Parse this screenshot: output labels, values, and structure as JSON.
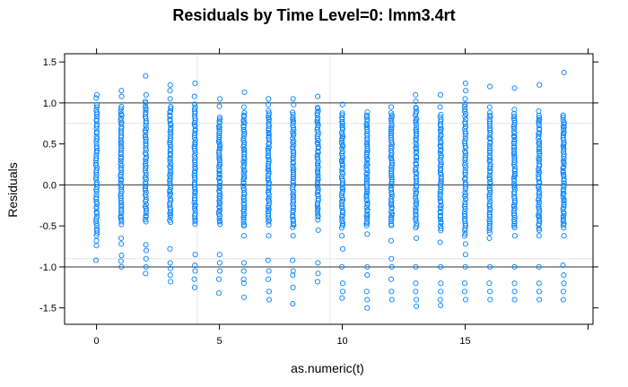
{
  "chart_data": {
    "type": "scatter",
    "title": "Residuals by Time Level=0: lmm3.4rt",
    "xlabel": "as.numeric(t)",
    "ylabel": "Residuals",
    "xlim": [
      -1.3,
      20.2
    ],
    "ylim": [
      -1.7,
      1.6
    ],
    "xticks": [
      "0",
      "5",
      "10",
      "15"
    ],
    "yticks": [
      "-1.5",
      "-1.0",
      "-0.5",
      "0.0",
      "0.5",
      "1.0",
      "1.5"
    ],
    "reference_lines": [
      1.0,
      0.0,
      -1.0
    ],
    "marker_color": "#0080ff",
    "marker": "open-circle",
    "columns": [
      {
        "x": 0,
        "band": [
          -0.62,
          0.98
        ],
        "highs": [
          1.06,
          1.1
        ],
        "lows": [
          -0.68,
          -0.74,
          -0.92
        ]
      },
      {
        "x": 1,
        "band": [
          -0.48,
          0.95
        ],
        "highs": [
          1.08,
          1.15
        ],
        "lows": [
          -0.65,
          -0.72,
          -0.86,
          -0.93,
          -1.0
        ]
      },
      {
        "x": 2,
        "band": [
          -0.45,
          1.02
        ],
        "highs": [
          1.1,
          1.33
        ],
        "lows": [
          -0.73,
          -0.8,
          -0.9,
          -1.0,
          -1.08
        ]
      },
      {
        "x": 3,
        "band": [
          -0.45,
          0.96
        ],
        "highs": [
          1.05,
          1.15,
          1.22
        ],
        "lows": [
          -0.78,
          -0.95,
          -1.02,
          -1.1,
          -1.18
        ]
      },
      {
        "x": 4,
        "band": [
          -0.48,
          0.98
        ],
        "highs": [
          1.08,
          1.24
        ],
        "lows": [
          -0.85,
          -0.98,
          -1.05,
          -1.15,
          -1.25
        ]
      },
      {
        "x": 5,
        "band": [
          -0.48,
          0.82
        ],
        "highs": [
          0.96,
          1.05
        ],
        "lows": [
          -0.85,
          -0.95,
          -1.05,
          -1.15,
          -1.32
        ]
      },
      {
        "x": 6,
        "band": [
          -0.5,
          0.88
        ],
        "highs": [
          0.95,
          1.13
        ],
        "lows": [
          -0.62,
          -0.95,
          -1.05,
          -1.15,
          -1.2,
          -1.37
        ]
      },
      {
        "x": 7,
        "band": [
          -0.48,
          0.9
        ],
        "highs": [
          0.98,
          1.05
        ],
        "lows": [
          -0.62,
          -0.92,
          -1.05,
          -1.15,
          -1.3,
          -1.4
        ]
      },
      {
        "x": 8,
        "band": [
          -0.52,
          0.88
        ],
        "highs": [
          0.98,
          1.05
        ],
        "lows": [
          -0.62,
          -0.92,
          -1.05,
          -1.1,
          -1.25,
          -1.45
        ]
      },
      {
        "x": 9,
        "band": [
          -0.42,
          0.95
        ],
        "highs": [
          1.08
        ],
        "lows": [
          -0.55,
          -0.95,
          -1.08,
          -1.18
        ]
      },
      {
        "x": 10,
        "band": [
          -0.52,
          0.88
        ],
        "highs": [
          0.98
        ],
        "lows": [
          -0.62,
          -0.78,
          -1.0,
          -1.2,
          -1.3,
          -1.38
        ]
      },
      {
        "x": 11,
        "band": [
          -0.5,
          0.85
        ],
        "highs": [
          0.89
        ],
        "lows": [
          -0.6,
          -1.0,
          -1.1,
          -1.3,
          -1.4,
          -1.5
        ]
      },
      {
        "x": 12,
        "band": [
          -0.5,
          0.88
        ],
        "highs": [
          0.95
        ],
        "lows": [
          -0.68,
          -0.9,
          -1.0,
          -1.15,
          -1.3,
          -1.4
        ]
      },
      {
        "x": 13,
        "band": [
          -0.52,
          0.95
        ],
        "highs": [
          1.02,
          1.1
        ],
        "lows": [
          -0.65,
          -1.0,
          -1.2,
          -1.3,
          -1.4,
          -1.48
        ]
      },
      {
        "x": 14,
        "band": [
          -0.55,
          0.85
        ],
        "highs": [
          0.95,
          1.1
        ],
        "lows": [
          -0.7,
          -1.0,
          -1.2,
          -1.3,
          -1.4,
          -1.47
        ]
      },
      {
        "x": 15,
        "band": [
          -0.62,
          0.98
        ],
        "highs": [
          1.05,
          1.15,
          1.24
        ],
        "lows": [
          -0.72,
          -0.85,
          -1.0,
          -1.2,
          -1.3,
          -1.4
        ]
      },
      {
        "x": 16,
        "band": [
          -0.58,
          0.88
        ],
        "highs": [
          0.95,
          1.2
        ],
        "lows": [
          -0.65,
          -1.0,
          -1.2,
          -1.3,
          -1.4
        ]
      },
      {
        "x": 17,
        "band": [
          -0.52,
          0.86
        ],
        "highs": [
          0.92,
          1.18
        ],
        "lows": [
          -0.62,
          -1.0,
          -1.2,
          -1.3,
          -1.4
        ]
      },
      {
        "x": 18,
        "band": [
          -0.55,
          0.85
        ],
        "highs": [
          0.9,
          1.22
        ],
        "lows": [
          -0.62,
          -1.0,
          -1.2,
          -1.3,
          -1.4
        ]
      },
      {
        "x": 19,
        "band": [
          -0.52,
          0.82
        ],
        "highs": [
          0.85,
          1.37
        ],
        "lows": [
          -0.62,
          -0.98,
          -1.1,
          -1.2,
          -1.3,
          -1.4
        ]
      }
    ]
  }
}
